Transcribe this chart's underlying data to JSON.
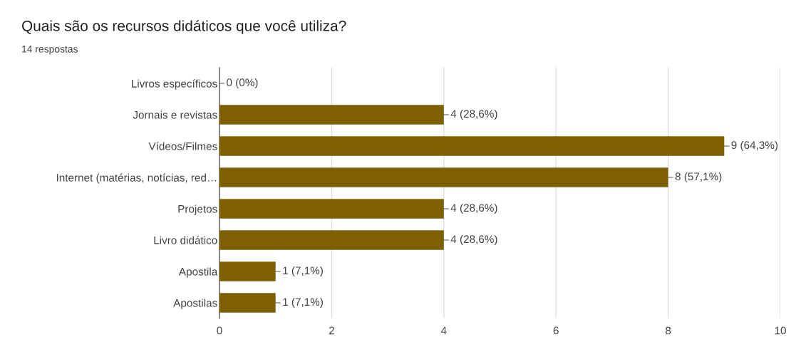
{
  "chart_data": {
    "type": "bar",
    "orientation": "horizontal",
    "title": "Quais são os recursos didáticos que você utiliza?",
    "subtitle": "14 respostas",
    "categories": [
      "Livros específicos",
      "Jornais e revistas",
      "Vídeos/Filmes",
      "Internet (matérias, notícias, red…",
      "Projetos",
      "Livro didático",
      "Apostila",
      "Apostilas"
    ],
    "values": [
      0,
      4,
      9,
      8,
      4,
      4,
      1,
      1
    ],
    "value_labels": [
      "0 (0%)",
      "4 (28,6%)",
      "9 (64,3%)",
      "8 (57,1%)",
      "4 (28,6%)",
      "4 (28,6%)",
      "1 (7,1%)",
      "1 (7,1%)"
    ],
    "color": "#7f6000",
    "xlim": [
      0,
      10
    ],
    "xticks": [
      0,
      2,
      4,
      6,
      8,
      10
    ],
    "grid": "x"
  }
}
